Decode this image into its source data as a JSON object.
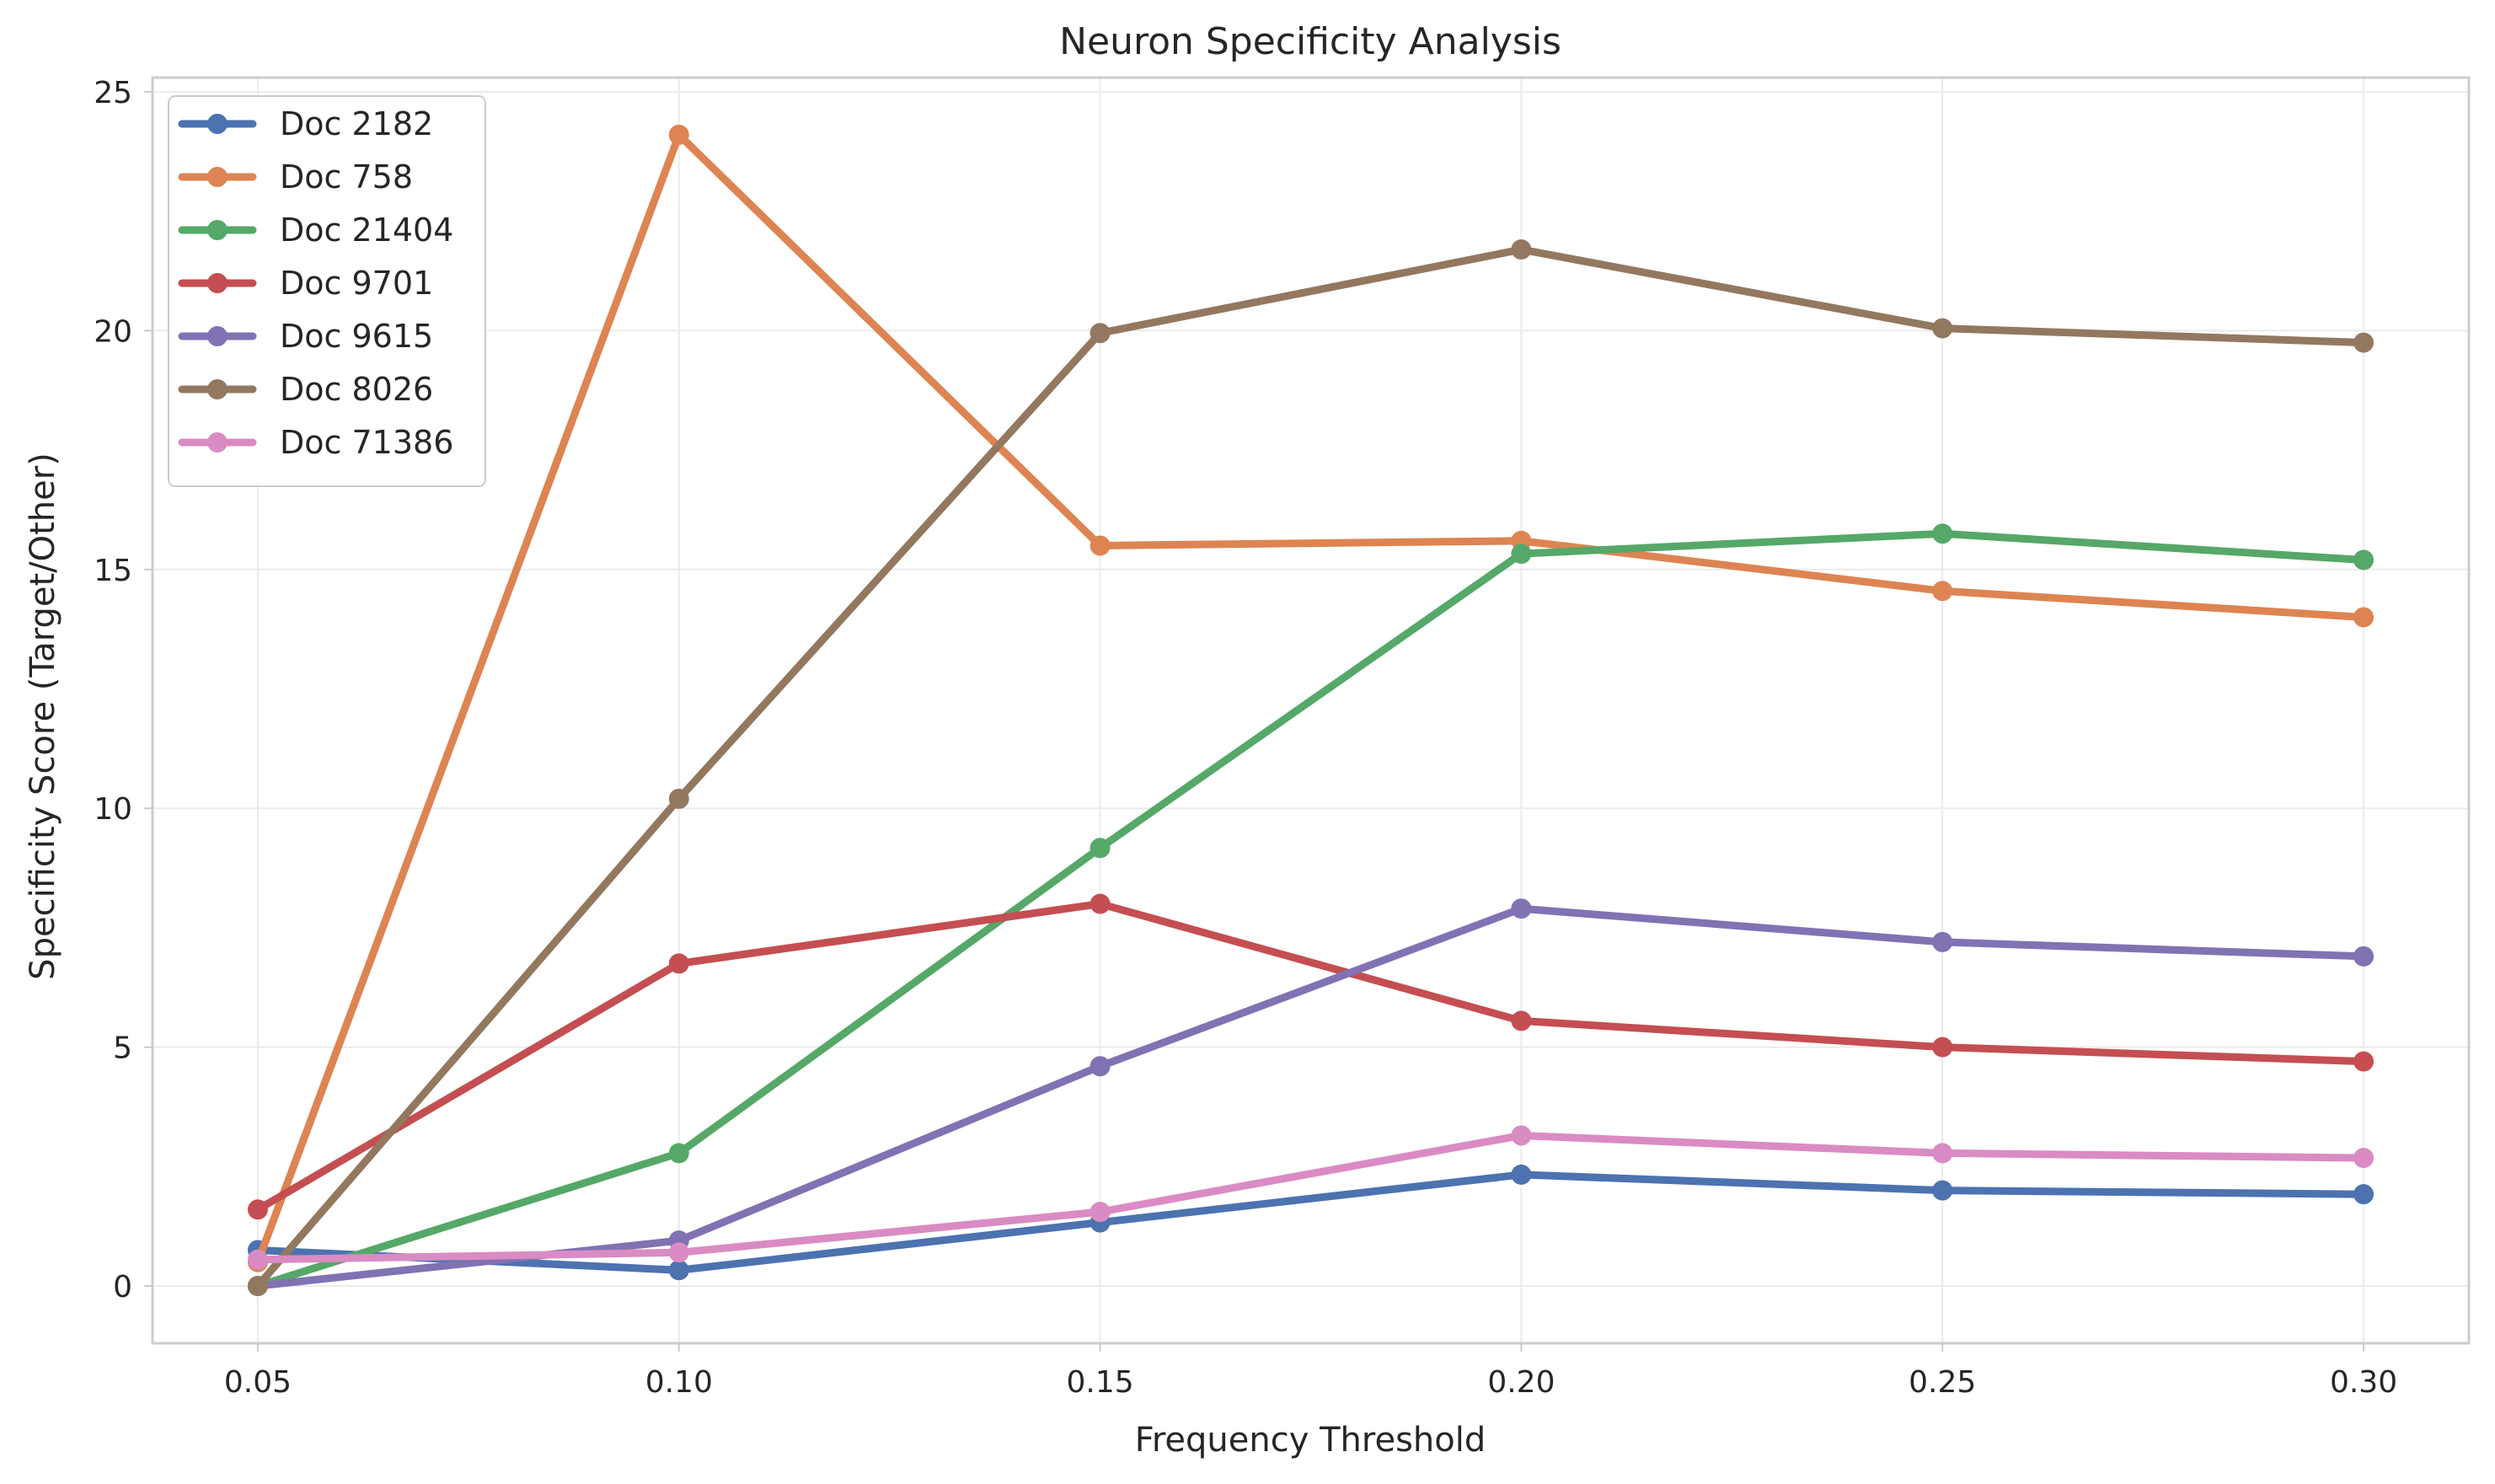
{
  "chart_data": {
    "type": "line",
    "title": "Neuron Specificity Analysis",
    "xlabel": "Frequency Threshold",
    "ylabel": "Specificity Score (Target/Other)",
    "x": [
      0.05,
      0.1,
      0.15,
      0.2,
      0.25,
      0.3
    ],
    "x_tick_labels": [
      "0.05",
      "0.10",
      "0.15",
      "0.20",
      "0.25",
      "0.30"
    ],
    "xlim": [
      0.0375,
      0.3125
    ],
    "ylim": [
      -1.2,
      25.3
    ],
    "y_ticks": [
      0,
      5,
      10,
      15,
      20,
      25
    ],
    "y_tick_labels": [
      "0",
      "5",
      "10",
      "15",
      "20",
      "25"
    ],
    "grid": true,
    "legend_position": "upper-left",
    "series": [
      {
        "name": "Doc 2182",
        "color": "#4c72b0",
        "values": [
          0.75,
          0.33,
          1.33,
          2.33,
          2.0,
          1.92
        ]
      },
      {
        "name": "Doc 758",
        "color": "#dd8452",
        "values": [
          0.5,
          24.1,
          15.5,
          15.6,
          14.55,
          14.0
        ]
      },
      {
        "name": "Doc 21404",
        "color": "#55a868",
        "values": [
          0.0,
          2.78,
          9.17,
          15.33,
          15.75,
          15.2
        ]
      },
      {
        "name": "Doc 9701",
        "color": "#c44e52",
        "values": [
          1.6,
          6.75,
          8.0,
          5.55,
          5.0,
          4.7
        ]
      },
      {
        "name": "Doc 9615",
        "color": "#8172b3",
        "values": [
          0.0,
          0.95,
          4.6,
          7.9,
          7.2,
          6.9
        ]
      },
      {
        "name": "Doc 8026",
        "color": "#937860",
        "values": [
          0.0,
          10.2,
          19.95,
          21.7,
          20.05,
          19.75
        ]
      },
      {
        "name": "Doc 71386",
        "color": "#da8bc3",
        "values": [
          0.55,
          0.7,
          1.55,
          3.15,
          2.78,
          2.68
        ]
      }
    ]
  }
}
